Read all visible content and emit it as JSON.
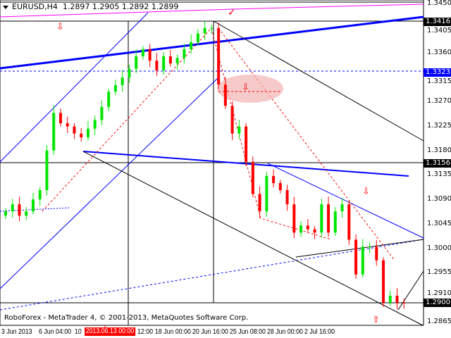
{
  "window": {
    "symbol_label": "EURUSD,H4",
    "ohlc": "1.2897 1.2905 1.2892 1.2899"
  },
  "footer": {
    "copyright": "RoboForex - MetaTrader 4, © 2001-2013, MetaQuotes Software Corp."
  },
  "colors": {
    "bull": "#00e600",
    "bear": "#ff0000",
    "trendline": "#0000ff",
    "level": "#000000",
    "magenta": "#ff00ff",
    "zone": "#f4b4b4"
  },
  "chart_data": {
    "type": "candlestick",
    "title": "EURUSD,H4",
    "ylim": [
      1.2855,
      1.3455
    ],
    "y_ticks": [
      "1.3450",
      "1.3405",
      "1.3360",
      "1.3315",
      "1.3270",
      "1.3225",
      "1.3180",
      "1.3135",
      "1.3090",
      "1.3045",
      "1.3000",
      "1.2955",
      "1.2910",
      "1.2865"
    ],
    "price_labels": [
      {
        "value": "1.3416",
        "style": "black"
      },
      {
        "value": "1.3323",
        "style": "blue"
      },
      {
        "value": "1.3156",
        "style": "black"
      },
      {
        "value": "1.2900",
        "style": "black"
      }
    ],
    "x_ticks": [
      "3 Jun 2013",
      "6 Jun 04:00",
      "10",
      "12:00",
      "18 Jun 00:00",
      "20 Jun 16:00",
      "25 Jun 08:00",
      "28 Jun 00:00",
      "2 Jul 16:00"
    ],
    "cursor_time": "2013.06.13 00:00",
    "closes": [
      1.3068,
      1.3081,
      1.306,
      1.3068,
      1.309,
      1.3107,
      1.318,
      1.3249,
      1.323,
      1.3224,
      1.3211,
      1.3204,
      1.322,
      1.3236,
      1.326,
      1.3288,
      1.33,
      1.3314,
      1.333,
      1.3353,
      1.3366,
      1.3345,
      1.3327,
      1.3353,
      1.334,
      1.335,
      1.3366,
      1.3379,
      1.3395,
      1.3405,
      1.3405,
      1.3301,
      1.3262,
      1.3211,
      1.3224,
      1.3159,
      1.31,
      1.3068,
      1.3133,
      1.312,
      1.3107,
      1.3081,
      1.3029,
      1.3042,
      1.3035,
      1.3029,
      1.3081,
      1.3029,
      1.3068,
      1.3081,
      1.3016,
      1.2952,
      1.3003,
      1.3003,
      1.2978,
      1.29,
      1.2913,
      1.29,
      1.2899
    ]
  }
}
